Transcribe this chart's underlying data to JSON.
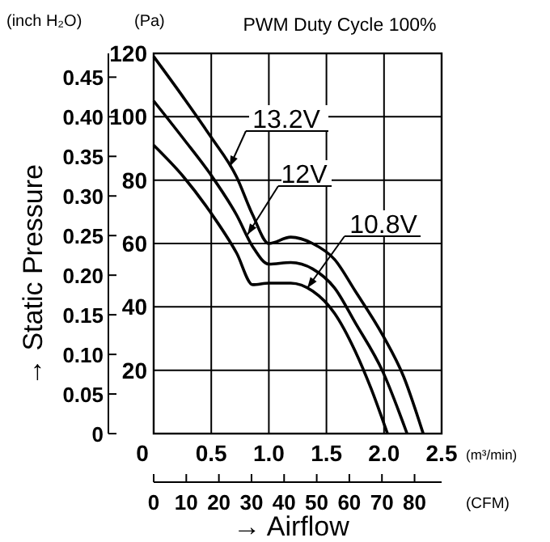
{
  "chart_data": {
    "type": "line",
    "title": "PWM Duty Cycle 100%",
    "xlabel": "(m³/min)",
    "ylabel": "(Pa)",
    "y2label": "(inch H₂O)",
    "x2label": "(CFM)",
    "annotations": [
      "→ Static Pressure",
      "→ Airflow"
    ],
    "series": [
      {
        "name": "13.2V",
        "color": "#000000",
        "x": [
          0,
          0.26,
          0.49,
          0.72,
          0.86,
          1.0,
          1.19,
          1.38,
          1.57,
          1.75,
          1.99,
          2.17,
          2.34
        ],
        "values": [
          119,
          106,
          94,
          81,
          69,
          60,
          62,
          60,
          55,
          45,
          31,
          18,
          0
        ]
      },
      {
        "name": "12V",
        "color": "#000000",
        "x": [
          0,
          0.26,
          0.49,
          0.72,
          0.86,
          1.0,
          1.19,
          1.38,
          1.57,
          1.75,
          1.99,
          2.2
        ],
        "values": [
          105,
          93,
          82,
          69,
          59,
          53.5,
          54,
          52,
          46,
          35,
          19.5,
          0
        ]
      },
      {
        "name": "10.8V",
        "color": "#000000",
        "x": [
          0,
          0.26,
          0.49,
          0.72,
          0.86,
          1.0,
          1.19,
          1.38,
          1.57,
          1.75,
          1.89,
          2.03
        ],
        "values": [
          91,
          81,
          70,
          57,
          47,
          47.5,
          47.5,
          45,
          38,
          26,
          14,
          0
        ]
      }
    ],
    "xlim": [
      0,
      2.5
    ],
    "xticks": [
      0,
      0.5,
      {
        "value": 1,
        "label": "1.0"
      },
      1.5,
      {
        "value": 2,
        "label": "2.0"
      },
      2.5
    ],
    "ylim": [
      0,
      120
    ],
    "yticks": [
      {
        "value": 0,
        "label": null
      },
      20,
      40,
      60,
      80,
      100,
      120
    ],
    "y2lim": [
      0,
      0.48
    ],
    "y2ticks": [
      0,
      0.05,
      {
        "value": 0.1,
        "label": "0.10"
      },
      0.15,
      {
        "value": 0.2,
        "label": "0.20"
      },
      0.25,
      {
        "value": 0.3,
        "label": "0.30"
      },
      0.35,
      {
        "value": 0.4,
        "label": "0.40"
      },
      0.45
    ],
    "x2lim": [
      0,
      88.3
    ],
    "x2ticks": [
      0,
      10,
      20,
      30,
      40,
      50,
      60,
      70,
      80
    ],
    "grid": true,
    "marker": "none",
    "line_style": "solid"
  }
}
